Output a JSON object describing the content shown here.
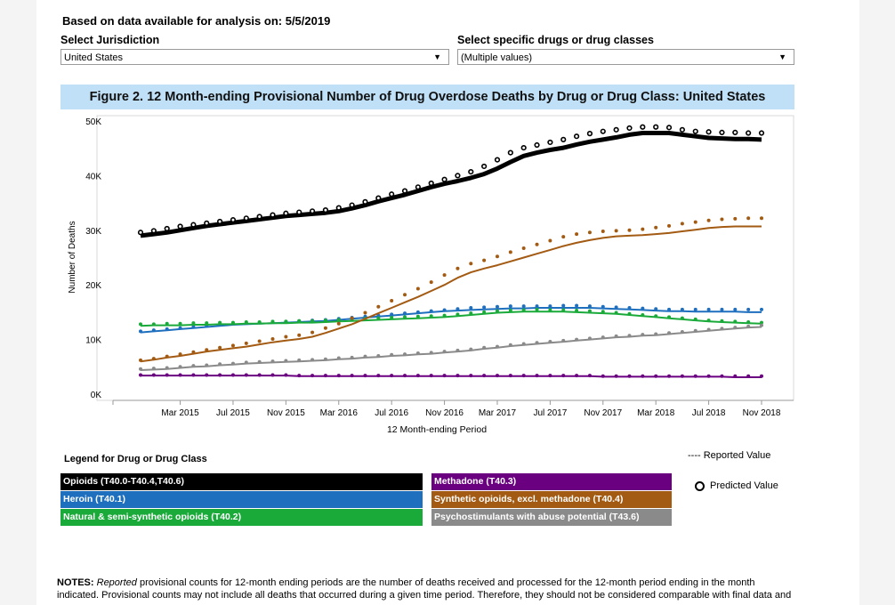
{
  "header": {
    "analysis_label": "Based on data available for analysis on:",
    "analysis_date": "5/5/2019"
  },
  "selectors": {
    "jurisdiction_label": "Select Jurisdiction",
    "jurisdiction_value": "United States",
    "drugs_label": "Select specific drugs or drug classes",
    "drugs_value": "(Multiple values)"
  },
  "legend": {
    "title": "Legend for Drug or Drug Class",
    "reported_label": "Reported Value",
    "predicted_label": "Predicted Value"
  },
  "notes": {
    "label": "NOTES:",
    "italic": "Reported",
    "text1": " provisional counts for 12-month ending periods are the number of deaths received and processed for the 12-month period ending in the month",
    "text2": "indicated. Provisional counts may not include all deaths that occurred during a given time period. Therefore, they should not be considered comparable with final data and"
  },
  "chart_data": {
    "type": "line",
    "title": "Figure 2. 12 Month-ending Provisional Number of Drug Overdose Deaths by Drug or Drug Class: United States",
    "xlabel": "12 Month-ending Period",
    "ylabel": "Number of Deaths",
    "ylim": [
      0,
      50000
    ],
    "y_ticks": [
      "0K",
      "10K",
      "20K",
      "30K",
      "40K",
      "50K"
    ],
    "x_ticks": [
      "Mar 2015",
      "Jul 2015",
      "Nov 2015",
      "Mar 2016",
      "Jul 2016",
      "Nov 2016",
      "Mar 2017",
      "Jul 2017",
      "Nov 2017",
      "Mar 2018",
      "Jul 2018",
      "Nov 2018"
    ],
    "x": [
      "Dec 2014",
      "Jan 2015",
      "Feb 2015",
      "Mar 2015",
      "Apr 2015",
      "May 2015",
      "Jun 2015",
      "Jul 2015",
      "Aug 2015",
      "Sep 2015",
      "Oct 2015",
      "Nov 2015",
      "Dec 2015",
      "Jan 2016",
      "Feb 2016",
      "Mar 2016",
      "Apr 2016",
      "May 2016",
      "Jun 2016",
      "Jul 2016",
      "Aug 2016",
      "Sep 2016",
      "Oct 2016",
      "Nov 2016",
      "Dec 2016",
      "Jan 2017",
      "Feb 2017",
      "Mar 2017",
      "Apr 2017",
      "May 2017",
      "Jun 2017",
      "Jul 2017",
      "Aug 2017",
      "Sep 2017",
      "Oct 2017",
      "Nov 2017",
      "Dec 2017",
      "Jan 2018",
      "Feb 2018",
      "Mar 2018",
      "Apr 2018",
      "May 2018",
      "Jun 2018",
      "Jul 2018",
      "Aug 2018",
      "Sep 2018",
      "Oct 2018",
      "Nov 2018"
    ],
    "grid": false,
    "legend_position": "bottom",
    "series": [
      {
        "name": "Opioids (T40.0-T40.4,T40.6)",
        "color": "#000000",
        "reported": [
          29000,
          29300,
          29600,
          30000,
          30400,
          30800,
          31100,
          31400,
          31700,
          32000,
          32300,
          32600,
          32800,
          33000,
          33200,
          33500,
          34000,
          34600,
          35300,
          35900,
          36500,
          37200,
          37900,
          38500,
          39000,
          39600,
          40300,
          41300,
          42500,
          43600,
          44200,
          44700,
          45100,
          45700,
          46200,
          46600,
          47000,
          47500,
          47800,
          47800,
          47800,
          47500,
          47200,
          46900,
          46800,
          46700,
          46700,
          46600
        ],
        "predicted": [
          29600,
          29900,
          30300,
          30700,
          31000,
          31300,
          31600,
          31900,
          32200,
          32500,
          32800,
          33100,
          33300,
          33500,
          33700,
          34100,
          34600,
          35200,
          35900,
          36600,
          37200,
          37900,
          38600,
          39300,
          40000,
          40700,
          41700,
          42900,
          44200,
          45100,
          45600,
          46100,
          46600,
          47200,
          47700,
          48100,
          48400,
          48700,
          48900,
          48900,
          48800,
          48400,
          48100,
          48000,
          47900,
          47900,
          47800,
          47800
        ]
      },
      {
        "name": "Heroin (T40.1)",
        "color": "#1f6fbf",
        "reported": [
          11300,
          11500,
          11700,
          11900,
          12100,
          12300,
          12500,
          12700,
          12800,
          12900,
          13000,
          13100,
          13200,
          13300,
          13400,
          13600,
          13800,
          14000,
          14200,
          14400,
          14600,
          14800,
          15000,
          15200,
          15300,
          15400,
          15500,
          15600,
          15700,
          15700,
          15800,
          15800,
          15800,
          15800,
          15800,
          15700,
          15600,
          15500,
          15400,
          15300,
          15200,
          15200,
          15100,
          15100,
          15100,
          15100,
          15000,
          15000
        ],
        "predicted": [
          11500,
          11700,
          11900,
          12100,
          12300,
          12500,
          12700,
          12900,
          13000,
          13100,
          13200,
          13300,
          13400,
          13500,
          13600,
          13800,
          14000,
          14200,
          14400,
          14600,
          14800,
          15000,
          15200,
          15400,
          15600,
          15800,
          15900,
          16000,
          16100,
          16100,
          16100,
          16100,
          16200,
          16200,
          16100,
          16000,
          15900,
          15800,
          15700,
          15600,
          15500,
          15500,
          15500,
          15500,
          15500,
          15500,
          15500,
          15500
        ]
      },
      {
        "name": "Natural & semi-synthetic opioids (T40.2)",
        "color": "#1aaa3a",
        "reported": [
          12500,
          12600,
          12600,
          12600,
          12700,
          12700,
          12800,
          12800,
          12900,
          12900,
          13000,
          13000,
          13100,
          13100,
          13200,
          13300,
          13400,
          13500,
          13600,
          13700,
          13800,
          13900,
          14000,
          14100,
          14300,
          14500,
          14700,
          14900,
          15000,
          15100,
          15100,
          15100,
          15100,
          15000,
          14900,
          14800,
          14700,
          14500,
          14300,
          14100,
          13900,
          13700,
          13500,
          13300,
          13200,
          13100,
          13000,
          12900
        ],
        "predicted": [
          12800,
          12800,
          12900,
          12900,
          13000,
          13000,
          13100,
          13100,
          13200,
          13200,
          13300,
          13300,
          13400,
          13400,
          13500,
          13600,
          13700,
          13800,
          13900,
          14000,
          14100,
          14200,
          14300,
          14400,
          14600,
          14800,
          15000,
          15200,
          15300,
          15400,
          15500,
          15400,
          15400,
          15300,
          15200,
          15100,
          14900,
          14700,
          14500,
          14300,
          14100,
          13900,
          13700,
          13500,
          13400,
          13300,
          13200,
          13100
        ]
      },
      {
        "name": "Methadone (T40.3)",
        "color": "#6a0080",
        "reported": [
          3400,
          3400,
          3400,
          3400,
          3400,
          3400,
          3400,
          3400,
          3400,
          3400,
          3400,
          3400,
          3300,
          3300,
          3300,
          3300,
          3300,
          3300,
          3300,
          3300,
          3300,
          3300,
          3300,
          3300,
          3300,
          3300,
          3300,
          3300,
          3300,
          3300,
          3300,
          3300,
          3300,
          3300,
          3300,
          3200,
          3200,
          3200,
          3200,
          3200,
          3200,
          3200,
          3200,
          3200,
          3200,
          3100,
          3100,
          3100
        ],
        "predicted": [
          3500,
          3500,
          3500,
          3500,
          3500,
          3500,
          3500,
          3500,
          3500,
          3500,
          3500,
          3500,
          3400,
          3400,
          3400,
          3400,
          3400,
          3400,
          3400,
          3400,
          3400,
          3400,
          3400,
          3400,
          3400,
          3400,
          3400,
          3400,
          3400,
          3400,
          3400,
          3400,
          3400,
          3400,
          3400,
          3300,
          3300,
          3300,
          3300,
          3300,
          3300,
          3300,
          3300,
          3300,
          3300,
          3300,
          3300,
          3300
        ]
      },
      {
        "name": "Synthetic opioids, excl. methadone (T40.4)",
        "color": "#a35a12",
        "reported": [
          6000,
          6300,
          6700,
          7000,
          7400,
          7800,
          8100,
          8400,
          8700,
          9100,
          9500,
          9800,
          10100,
          10500,
          11200,
          12000,
          12800,
          13800,
          14800,
          15800,
          16800,
          17800,
          18900,
          20000,
          21300,
          22300,
          23000,
          23600,
          24300,
          25000,
          25700,
          26400,
          27100,
          27700,
          28200,
          28600,
          28900,
          29000,
          29100,
          29300,
          29500,
          29800,
          30100,
          30400,
          30600,
          30700,
          30700,
          30700
        ],
        "predicted": [
          6200,
          6500,
          6900,
          7300,
          7700,
          8100,
          8500,
          8900,
          9300,
          9700,
          10100,
          10500,
          10800,
          11300,
          12100,
          12900,
          13900,
          14900,
          16000,
          17100,
          18200,
          19300,
          20500,
          21800,
          23000,
          23900,
          24500,
          25200,
          26000,
          26700,
          27400,
          28100,
          28800,
          29300,
          29600,
          29800,
          29900,
          30000,
          30200,
          30500,
          30800,
          31200,
          31500,
          31800,
          32000,
          32100,
          32200,
          32200
        ]
      },
      {
        "name": "Psychostimulants with abuse potential (T43.6)",
        "color": "#8a8a8a",
        "reported": [
          4400,
          4500,
          4600,
          4800,
          5000,
          5100,
          5300,
          5400,
          5600,
          5700,
          5800,
          5900,
          6000,
          6100,
          6200,
          6400,
          6500,
          6700,
          6800,
          7000,
          7100,
          7300,
          7400,
          7600,
          7800,
          8000,
          8300,
          8500,
          8800,
          9000,
          9200,
          9400,
          9600,
          9800,
          10000,
          10200,
          10400,
          10500,
          10700,
          10800,
          11000,
          11200,
          11400,
          11600,
          11800,
          12000,
          12200,
          12300
        ],
        "predicted": [
          4600,
          4700,
          4800,
          5000,
          5200,
          5300,
          5500,
          5600,
          5800,
          5900,
          6000,
          6100,
          6200,
          6300,
          6400,
          6600,
          6700,
          6900,
          7000,
          7200,
          7300,
          7500,
          7600,
          7800,
          8000,
          8200,
          8500,
          8700,
          9000,
          9200,
          9400,
          9600,
          9800,
          10000,
          10200,
          10400,
          10600,
          10700,
          10900,
          11000,
          11200,
          11400,
          11600,
          11800,
          12000,
          12200,
          12400,
          12600
        ]
      }
    ]
  }
}
